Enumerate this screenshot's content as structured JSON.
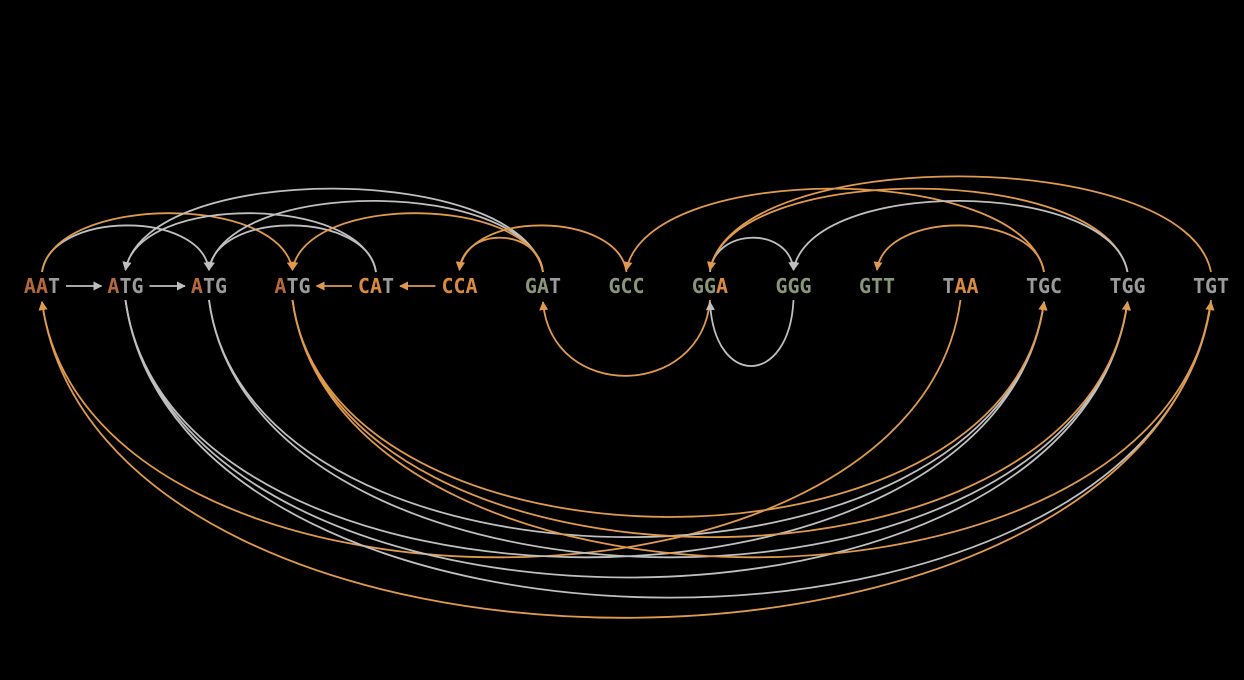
{
  "colors": {
    "background": "#000000",
    "edge_orange": "#e09a4e",
    "edge_gray": "#bfbfbf",
    "letter_orange": "#d98a3e",
    "letter_brown": "#b5683c",
    "letter_gray": "#9a9a9a",
    "letter_green": "#8a9678"
  },
  "nodes": [
    {
      "id": "n0",
      "parts": [
        {
          "t": "AA",
          "c": "letter_brown"
        },
        {
          "t": "T",
          "c": "letter_gray"
        }
      ]
    },
    {
      "id": "n1",
      "parts": [
        {
          "t": "A",
          "c": "letter_brown"
        },
        {
          "t": "TG",
          "c": "letter_gray"
        }
      ]
    },
    {
      "id": "n2",
      "parts": [
        {
          "t": "A",
          "c": "letter_brown"
        },
        {
          "t": "TG",
          "c": "letter_gray"
        }
      ]
    },
    {
      "id": "n3",
      "parts": [
        {
          "t": "A",
          "c": "letter_brown"
        },
        {
          "t": "TG",
          "c": "letter_gray"
        }
      ]
    },
    {
      "id": "n4",
      "parts": [
        {
          "t": "CA",
          "c": "letter_orange"
        },
        {
          "t": "T",
          "c": "letter_gray"
        }
      ]
    },
    {
      "id": "n5",
      "parts": [
        {
          "t": "CCA",
          "c": "letter_orange"
        }
      ]
    },
    {
      "id": "n6",
      "parts": [
        {
          "t": "GA",
          "c": "letter_green"
        },
        {
          "t": "T",
          "c": "letter_gray"
        }
      ]
    },
    {
      "id": "n7",
      "parts": [
        {
          "t": "GCC",
          "c": "letter_green"
        }
      ]
    },
    {
      "id": "n8",
      "parts": [
        {
          "t": "GG",
          "c": "letter_green"
        },
        {
          "t": "A",
          "c": "letter_orange"
        }
      ]
    },
    {
      "id": "n9",
      "parts": [
        {
          "t": "GGG",
          "c": "letter_green"
        }
      ]
    },
    {
      "id": "n10",
      "parts": [
        {
          "t": "GTT",
          "c": "letter_green"
        }
      ]
    },
    {
      "id": "n11",
      "parts": [
        {
          "t": "T",
          "c": "letter_gray"
        },
        {
          "t": "AA",
          "c": "letter_orange"
        }
      ]
    },
    {
      "id": "n12",
      "parts": [
        {
          "t": "TGC",
          "c": "letter_gray"
        }
      ]
    },
    {
      "id": "n13",
      "parts": [
        {
          "t": "TGG",
          "c": "letter_gray"
        }
      ]
    },
    {
      "id": "n14",
      "parts": [
        {
          "t": "TGT",
          "c": "letter_gray"
        }
      ]
    }
  ],
  "edges": [
    {
      "from": "n0",
      "to": "n1",
      "color": "edge_gray"
    },
    {
      "from": "n1",
      "to": "n2",
      "color": "edge_gray"
    },
    {
      "from": "n4",
      "to": "n3",
      "color": "edge_orange"
    },
    {
      "from": "n5",
      "to": "n4",
      "color": "edge_orange"
    },
    {
      "from": "n0",
      "to": "n2",
      "color": "edge_gray"
    },
    {
      "from": "n0",
      "to": "n3",
      "color": "edge_orange"
    },
    {
      "from": "n4",
      "to": "n1",
      "color": "edge_gray"
    },
    {
      "from": "n4",
      "to": "n2",
      "color": "edge_gray"
    },
    {
      "from": "n6",
      "to": "n1",
      "color": "edge_gray"
    },
    {
      "from": "n6",
      "to": "n2",
      "color": "edge_gray"
    },
    {
      "from": "n6",
      "to": "n3",
      "color": "edge_orange"
    },
    {
      "from": "n6",
      "to": "n5",
      "color": "edge_orange"
    },
    {
      "from": "n7",
      "to": "n5",
      "color": "edge_orange"
    },
    {
      "from": "n8",
      "to": "n6",
      "color": "edge_orange"
    },
    {
      "from": "n8",
      "to": "n9",
      "color": "edge_gray"
    },
    {
      "from": "n9",
      "to": "n8",
      "color": "edge_gray"
    },
    {
      "from": "n12",
      "to": "n7",
      "color": "edge_orange"
    },
    {
      "from": "n13",
      "to": "n8",
      "color": "edge_orange"
    },
    {
      "from": "n14",
      "to": "n8",
      "color": "edge_orange"
    },
    {
      "from": "n12",
      "to": "n10",
      "color": "edge_orange"
    },
    {
      "from": "n13",
      "to": "n9",
      "color": "edge_gray"
    },
    {
      "from": "n11",
      "to": "n0",
      "color": "edge_orange"
    },
    {
      "from": "n1",
      "to": "n12",
      "color": "edge_gray"
    },
    {
      "from": "n1",
      "to": "n13",
      "color": "edge_gray"
    },
    {
      "from": "n1",
      "to": "n14",
      "color": "edge_gray"
    },
    {
      "from": "n2",
      "to": "n12",
      "color": "edge_gray"
    },
    {
      "from": "n2",
      "to": "n13",
      "color": "edge_gray"
    },
    {
      "from": "n3",
      "to": "n12",
      "color": "edge_orange"
    },
    {
      "from": "n3",
      "to": "n13",
      "color": "edge_orange"
    },
    {
      "from": "n3",
      "to": "n14",
      "color": "edge_orange"
    },
    {
      "from": "n14",
      "to": "n0",
      "color": "edge_orange"
    }
  ]
}
